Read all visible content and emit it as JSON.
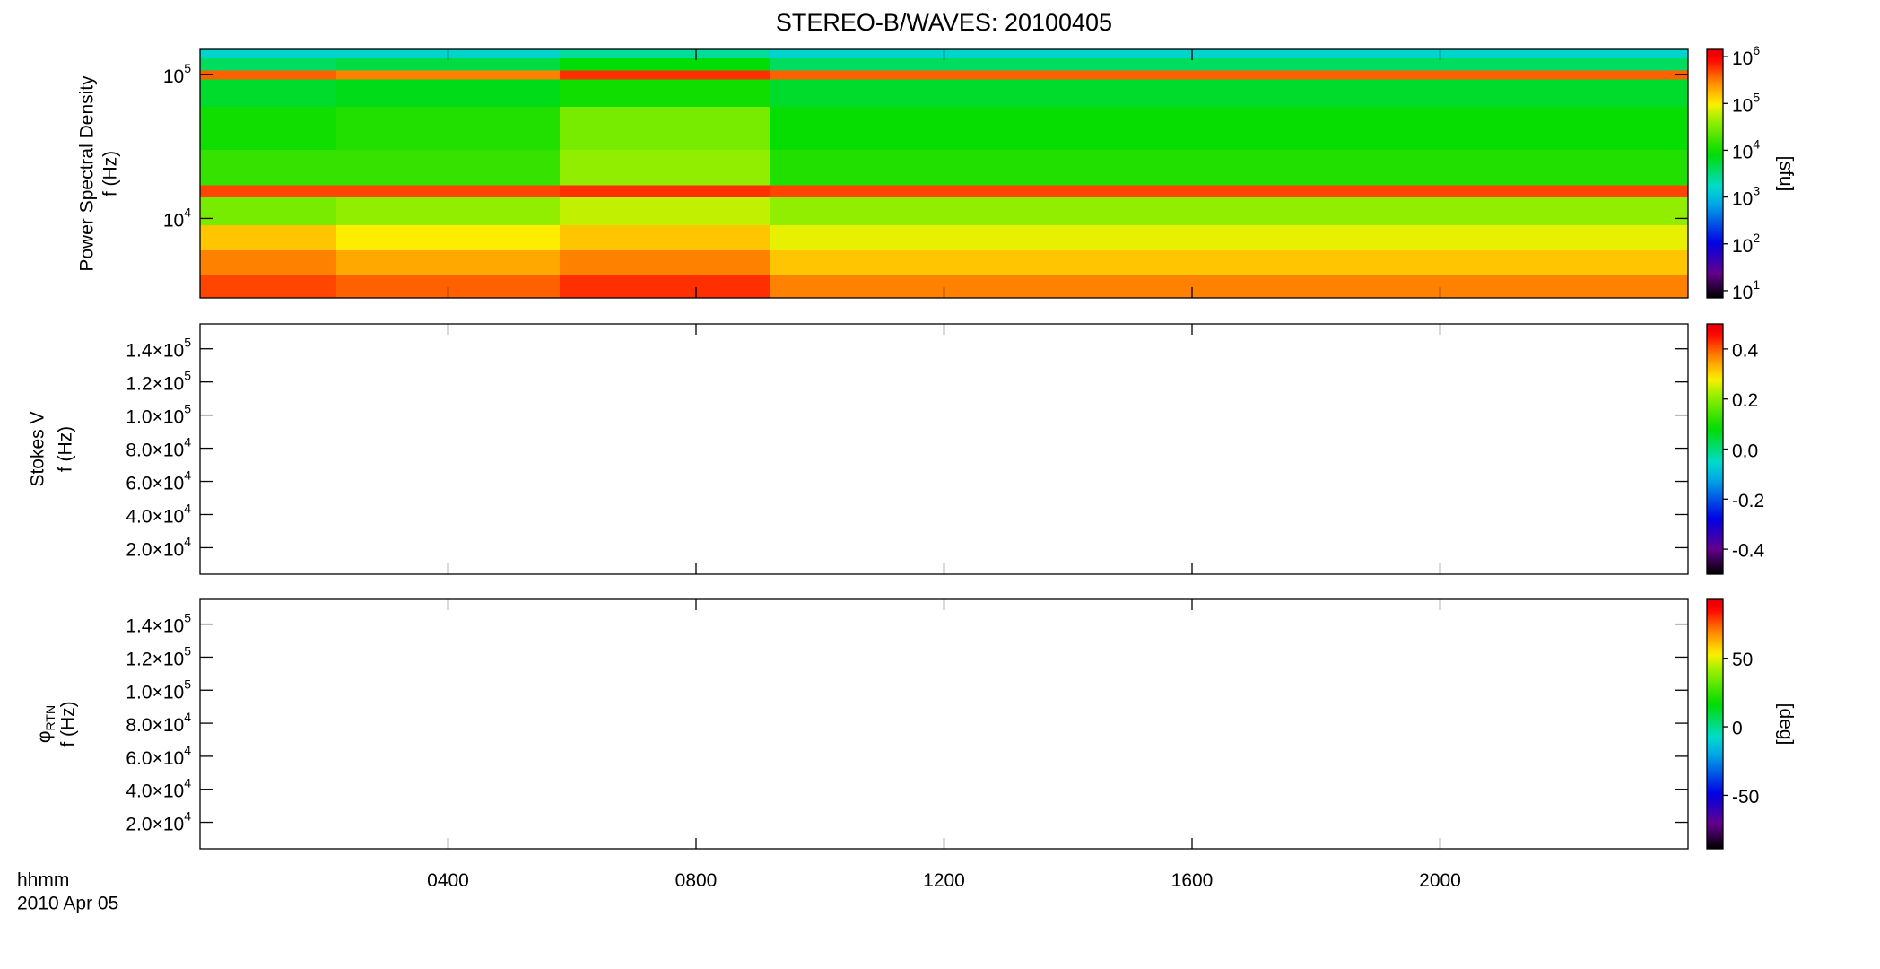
{
  "chart_data": [
    {
      "type": "heatmap",
      "title": "STEREO-B/WAVES: 20100405",
      "ylabel": [
        "Power Spectral Density",
        "f (Hz)"
      ],
      "xlim": [
        0,
        24
      ],
      "xticks": [
        4,
        8,
        12,
        16,
        20
      ],
      "ylog": true,
      "ylim": [
        2800,
        150000
      ],
      "yticks": [
        {
          "value": 10000,
          "label": "10",
          "exponent": "4"
        },
        {
          "value": 100000,
          "label": "10",
          "exponent": "5"
        }
      ],
      "colormap": "rainbow",
      "zlog": true,
      "zlim": [
        7,
        1430000
      ],
      "zlabel": "[sfu]",
      "zticks": [
        {
          "value": 10,
          "label": "10",
          "exponent": "1"
        },
        {
          "value": 100,
          "label": "10",
          "exponent": "2"
        },
        {
          "value": 1000,
          "label": "10",
          "exponent": "3"
        },
        {
          "value": 10000,
          "label": "10",
          "exponent": "4"
        },
        {
          "value": 100000,
          "label": "10",
          "exponent": "5"
        },
        {
          "value": 1000000,
          "label": "10",
          "exponent": "6"
        }
      ],
      "x": [
        0,
        2.2,
        5.8,
        9.2,
        24
      ],
      "y": [
        2800,
        4000,
        6000,
        9000,
        14000,
        17000,
        30000,
        60000,
        93000,
        107000,
        130000,
        150000
      ],
      "z": [
        [
          500000,
          400000,
          600000,
          300000
        ],
        [
          300000,
          200000,
          300000,
          150000
        ],
        [
          150000,
          100000,
          150000,
          80000
        ],
        [
          30000,
          40000,
          60000,
          40000
        ],
        [
          500000,
          500000,
          600000,
          500000
        ],
        [
          15000,
          15000,
          40000,
          12000
        ],
        [
          10000,
          12000,
          30000,
          9000
        ],
        [
          6000,
          7000,
          10000,
          6000
        ],
        [
          400000,
          300000,
          600000,
          400000
        ],
        [
          4000,
          5000,
          8000,
          4000
        ],
        [
          1500,
          1500,
          2500,
          1500
        ]
      ]
    },
    {
      "type": "heatmap",
      "ylabel": [
        "Stokes V",
        "f (Hz)"
      ],
      "xlim": [
        0,
        24
      ],
      "xticks": [
        4,
        8,
        12,
        16,
        20
      ],
      "ylog": false,
      "ylim": [
        4000,
        155000
      ],
      "yticks": [
        {
          "value": 20000,
          "label": "2.0×10",
          "exponent": "4"
        },
        {
          "value": 40000,
          "label": "4.0×10",
          "exponent": "4"
        },
        {
          "value": 60000,
          "label": "6.0×10",
          "exponent": "4"
        },
        {
          "value": 80000,
          "label": "8.0×10",
          "exponent": "4"
        },
        {
          "value": 100000,
          "label": "1.0×10",
          "exponent": "5"
        },
        {
          "value": 120000,
          "label": "1.2×10",
          "exponent": "5"
        },
        {
          "value": 140000,
          "label": "1.4×10",
          "exponent": "5"
        }
      ],
      "colormap": "rainbow",
      "zlog": false,
      "zlim": [
        -0.5,
        0.5
      ],
      "zticks": [
        -0.4,
        -0.2,
        {
          "value": 0,
          "label": "0.0"
        },
        0.2,
        0.4
      ]
    },
    {
      "type": "heatmap",
      "ylabel": [
        {
          "label": "φ",
          "subscript": "RTN"
        },
        "f (Hz)"
      ],
      "xlabel": [
        "hhmm",
        "2010 Apr 05"
      ],
      "xlim": [
        0,
        24
      ],
      "xticks": [
        {
          "value": 4,
          "label": "0400"
        },
        {
          "value": 8,
          "label": "0800"
        },
        {
          "value": 12,
          "label": "1200"
        },
        {
          "value": 16,
          "label": "1600"
        },
        {
          "value": 20,
          "label": "2000"
        }
      ],
      "ylog": false,
      "ylim": [
        4000,
        155000
      ],
      "yticks": [
        {
          "value": 20000,
          "label": "2.0×10",
          "exponent": "4"
        },
        {
          "value": 40000,
          "label": "4.0×10",
          "exponent": "4"
        },
        {
          "value": 60000,
          "label": "6.0×10",
          "exponent": "4"
        },
        {
          "value": 80000,
          "label": "8.0×10",
          "exponent": "4"
        },
        {
          "value": 100000,
          "label": "1.0×10",
          "exponent": "5"
        },
        {
          "value": 120000,
          "label": "1.2×10",
          "exponent": "5"
        },
        {
          "value": 140000,
          "label": "1.4×10",
          "exponent": "5"
        }
      ],
      "colormap": "rainbow",
      "zlog": false,
      "zlim": [
        -89,
        93
      ],
      "zlabel": "[deg]",
      "zticks": [
        -50,
        0,
        50
      ]
    }
  ]
}
